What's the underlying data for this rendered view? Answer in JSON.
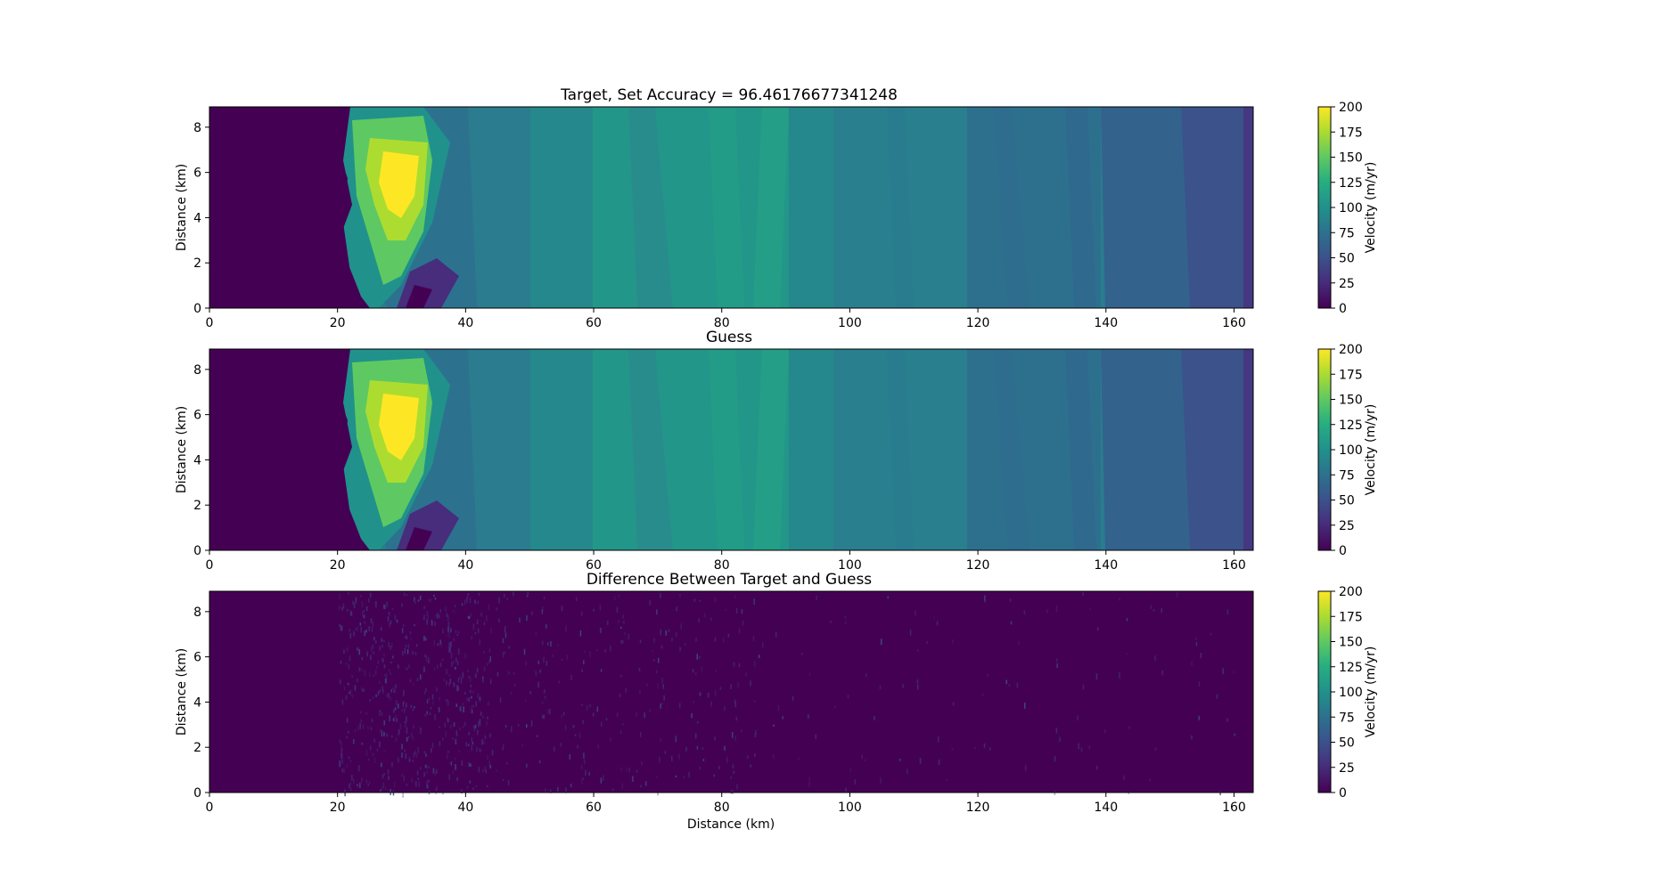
{
  "figure": {
    "x_axis_label": "Distance (km)"
  },
  "chart_data": [
    {
      "type": "heatmap",
      "title": "Target, Set Accuracy = 96.46176677341248",
      "xlabel": "",
      "ylabel": "Distance (km)",
      "xlim": [
        0,
        163
      ],
      "ylim": [
        0,
        8.9
      ],
      "xticks": [
        "0",
        "20",
        "40",
        "60",
        "80",
        "100",
        "120",
        "140",
        "160"
      ],
      "yticks": [
        "0",
        "2",
        "4",
        "6",
        "8"
      ],
      "colorbar": {
        "label": "Velocity (m/yr)",
        "range": [
          0,
          200
        ],
        "ticks": [
          "0",
          "25",
          "50",
          "75",
          "100",
          "125",
          "150",
          "175",
          "200"
        ],
        "colormap": "viridis"
      },
      "field": "velocity"
    },
    {
      "type": "heatmap",
      "title": "Guess",
      "xlabel": "",
      "ylabel": "Distance (km)",
      "xlim": [
        0,
        163
      ],
      "ylim": [
        0,
        8.9
      ],
      "xticks": [
        "0",
        "20",
        "40",
        "60",
        "80",
        "100",
        "120",
        "140",
        "160"
      ],
      "yticks": [
        "0",
        "2",
        "4",
        "6",
        "8"
      ],
      "colorbar": {
        "label": "Velocity (m/yr)",
        "range": [
          0,
          200
        ],
        "ticks": [
          "0",
          "25",
          "50",
          "75",
          "100",
          "125",
          "150",
          "175",
          "200"
        ],
        "colormap": "viridis"
      },
      "field": "velocity"
    },
    {
      "type": "heatmap",
      "title": "Difference Between Target and Guess",
      "xlabel": "Distance (km)",
      "ylabel": "Distance (km)",
      "xlim": [
        0,
        163
      ],
      "ylim": [
        0,
        8.9
      ],
      "xticks": [
        "0",
        "20",
        "40",
        "60",
        "80",
        "100",
        "120",
        "140",
        "160"
      ],
      "yticks": [
        "0",
        "2",
        "4",
        "6",
        "8"
      ],
      "colorbar": {
        "label": "Velocity (m/yr)",
        "range": [
          0,
          200
        ],
        "ticks": [
          "0",
          "25",
          "50",
          "75",
          "100",
          "125",
          "150",
          "175",
          "200"
        ],
        "colormap": "viridis"
      },
      "field": "difference"
    }
  ]
}
